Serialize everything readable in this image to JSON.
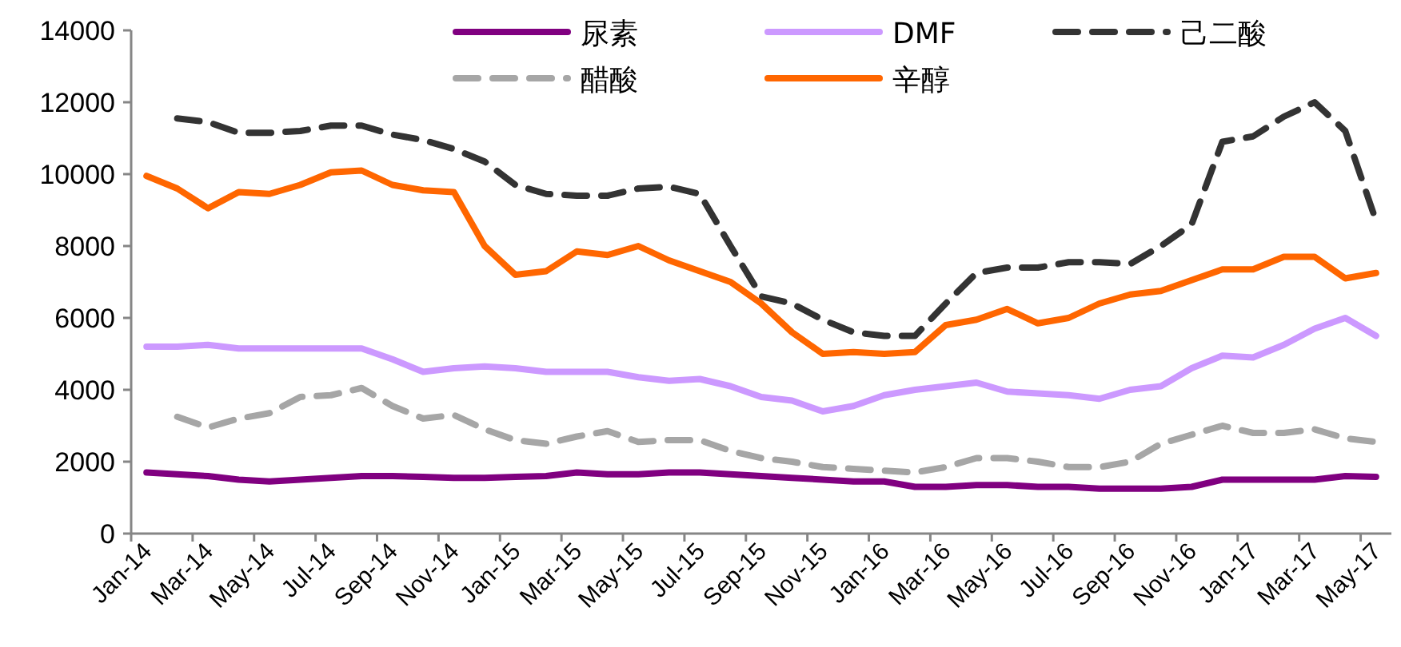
{
  "chart_data": {
    "type": "line",
    "categories": [
      "Jan-14",
      null,
      "Mar-14",
      null,
      "May-14",
      null,
      "Jul-14",
      null,
      "Sep-14",
      null,
      "Nov-14",
      null,
      "Jan-15",
      null,
      "Mar-15",
      null,
      "May-15",
      null,
      "Jul-15",
      null,
      "Sep-15",
      null,
      "Nov-15",
      null,
      "Jan-16",
      null,
      "Mar-16",
      null,
      "May-16",
      null,
      "Jul-16",
      null,
      "Sep-16",
      null,
      "Nov-16",
      null,
      "Jan-17",
      null,
      "Mar-17",
      null,
      "May-17"
    ],
    "series": [
      {
        "name": "尿素",
        "color": "#800080",
        "line_style": "solid",
        "values": [
          1700,
          1650,
          1600,
          1500,
          1450,
          1500,
          1550,
          1600,
          1600,
          1580,
          1550,
          1550,
          1580,
          1600,
          1700,
          1650,
          1650,
          1700,
          1700,
          1650,
          1600,
          1550,
          1500,
          1450,
          1450,
          1300,
          1300,
          1350,
          1350,
          1300,
          1300,
          1250,
          1250,
          1250,
          1300,
          1500,
          1500,
          1500,
          1500,
          1600,
          1580
        ]
      },
      {
        "name": "DMF",
        "color": "#cc99ff",
        "line_style": "solid",
        "values": [
          5200,
          5200,
          5250,
          5150,
          5150,
          5150,
          5150,
          5150,
          4850,
          4500,
          4600,
          4650,
          4600,
          4500,
          4500,
          4500,
          4350,
          4250,
          4300,
          4100,
          3800,
          3700,
          3400,
          3550,
          3850,
          4000,
          4100,
          4200,
          3950,
          3900,
          3850,
          3750,
          4000,
          4100,
          4600,
          4950,
          4900,
          5250,
          5700,
          6000,
          5500
        ]
      },
      {
        "name": "己二酸",
        "color": "#333333",
        "line_style": "dashed",
        "values": [
          null,
          11550,
          11450,
          11150,
          11150,
          11200,
          11350,
          11350,
          11100,
          10950,
          10700,
          10350,
          9700,
          9450,
          9400,
          9400,
          9600,
          9650,
          9450,
          8000,
          6600,
          6400,
          5950,
          5600,
          5500,
          5500,
          6400,
          7250,
          7400,
          7400,
          7550,
          7550,
          7500,
          8000,
          8600,
          10900,
          11050,
          11600,
          12000,
          11200,
          8700
        ]
      },
      {
        "name": "醋酸",
        "color": "#a6a6a6",
        "line_style": "dashed",
        "values": [
          null,
          3250,
          2950,
          3200,
          3350,
          3800,
          3850,
          4050,
          3550,
          3200,
          3300,
          2900,
          2600,
          2500,
          2700,
          2850,
          2550,
          2600,
          2600,
          2300,
          2100,
          2000,
          1850,
          1800,
          1750,
          1700,
          1850,
          2100,
          2100,
          2000,
          1850,
          1850,
          2000,
          2500,
          2750,
          3000,
          2800,
          2800,
          2900,
          2650,
          2550
        ]
      },
      {
        "name": "辛醇",
        "color": "#ff6600",
        "line_style": "solid",
        "values": [
          9950,
          9600,
          9050,
          9500,
          9450,
          9700,
          10050,
          10100,
          9700,
          9550,
          9500,
          8000,
          7200,
          7300,
          7850,
          7750,
          8000,
          7600,
          7300,
          7000,
          6400,
          5600,
          5000,
          5050,
          5000,
          5050,
          5800,
          5950,
          6250,
          5850,
          6000,
          6400,
          6650,
          6750,
          7050,
          7350,
          7350,
          7700,
          7700,
          7100,
          7250
        ]
      }
    ],
    "ylim": [
      0,
      14000
    ],
    "yticks": [
      0,
      2000,
      4000,
      6000,
      8000,
      10000,
      12000,
      14000
    ],
    "legend": "top",
    "marker": "none"
  }
}
